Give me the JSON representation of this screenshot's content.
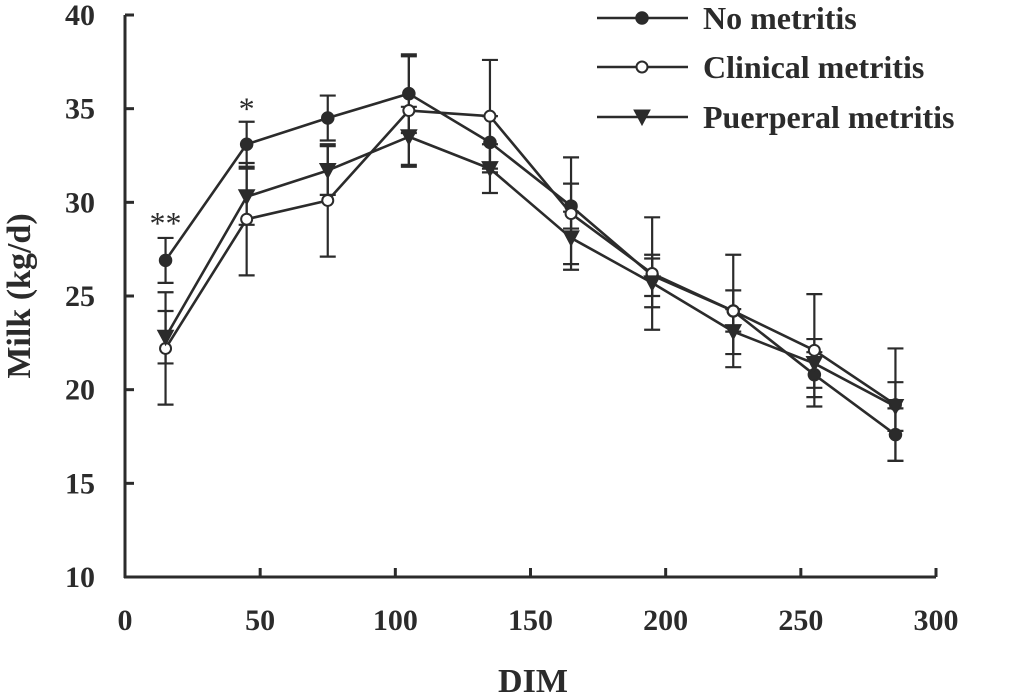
{
  "chart_data": {
    "type": "line",
    "title": "",
    "xlabel": "DIM",
    "ylabel": "Milk (kg/d)",
    "xlim": [
      0,
      300
    ],
    "ylim": [
      10,
      40
    ],
    "xticks": [
      0,
      50,
      100,
      150,
      200,
      250,
      300
    ],
    "yticks": [
      10,
      15,
      20,
      25,
      30,
      35,
      40
    ],
    "grid": false,
    "legend_position": "top-right",
    "x": [
      15,
      45,
      75,
      105,
      135,
      165,
      195,
      225,
      255,
      285
    ],
    "series": [
      {
        "name": "No metritis",
        "marker": "filled-circle",
        "values": [
          26.9,
          33.1,
          34.5,
          35.8,
          33.2,
          29.8,
          26.1,
          24.2,
          20.8,
          17.6
        ],
        "errors": [
          1.2,
          1.2,
          1.2,
          2.1,
          1.4,
          1.2,
          1.1,
          1.1,
          1.2,
          1.4
        ]
      },
      {
        "name": "Clinical metritis",
        "marker": "open-circle",
        "values": [
          22.2,
          29.1,
          30.1,
          34.9,
          34.6,
          29.4,
          26.2,
          24.2,
          22.1,
          19.2
        ],
        "errors": [
          3.0,
          3.0,
          3.0,
          2.9,
          3.0,
          3.0,
          3.0,
          3.0,
          3.0,
          3.0
        ]
      },
      {
        "name": "Puerperal metritis",
        "marker": "filled-triangle-down",
        "values": [
          22.8,
          30.3,
          31.7,
          33.5,
          31.8,
          28.1,
          25.7,
          23.1,
          21.4,
          19.1
        ],
        "errors": [
          1.4,
          1.5,
          1.3,
          1.6,
          1.3,
          1.4,
          1.3,
          1.2,
          1.3,
          1.3
        ]
      }
    ],
    "annotations": [
      {
        "x": 15,
        "y": 28.9,
        "text": "**"
      },
      {
        "x": 45,
        "y": 35.0,
        "text": "*"
      }
    ]
  }
}
